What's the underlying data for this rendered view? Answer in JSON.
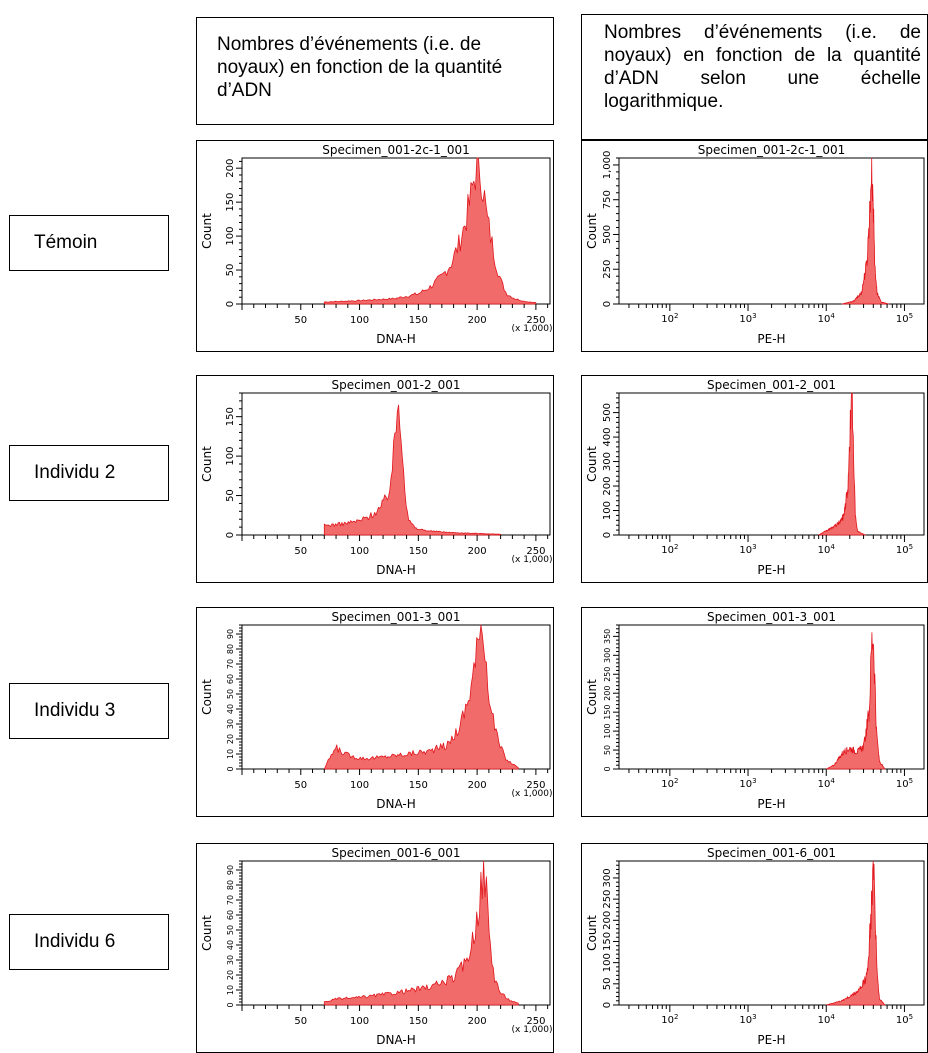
{
  "headers": {
    "linear": "Nombres d’événements (i.e. de noyaux) en fonction de la quantité d’ADN",
    "log": "Nombres d’événements (i.e. de noyaux) en fonction de la quantité d’ADN selon une échelle logarithmique."
  },
  "rows": [
    {
      "label": "Témoin"
    },
    {
      "label": "Individu 2"
    },
    {
      "label": "Individu 3"
    },
    {
      "label": "Individu 6"
    }
  ],
  "colors": {
    "fill": "#f26b6b",
    "stroke": "#e0161c"
  },
  "chart_data": [
    {
      "type": "area",
      "title": "Specimen_001-2c-1_001",
      "xlabel": "DNA-H",
      "ylabel": "Count",
      "xscale": "linear",
      "xlim": [
        0,
        262
      ],
      "ylim": [
        0,
        215
      ],
      "multiplier": "(x 1,000)",
      "xticks": [
        "50",
        "100",
        "150",
        "200",
        "250"
      ],
      "yticks": [
        "0",
        "50",
        "100",
        "150",
        "200"
      ],
      "x": [
        70,
        100,
        130,
        150,
        160,
        170,
        178,
        185,
        190,
        195,
        198,
        200,
        202,
        204,
        206,
        208,
        212,
        216,
        220,
        225,
        232,
        240,
        250
      ],
      "y": [
        3,
        5,
        8,
        15,
        25,
        40,
        60,
        90,
        120,
        160,
        190,
        205,
        200,
        185,
        160,
        130,
        95,
        60,
        35,
        15,
        8,
        4,
        2
      ]
    },
    {
      "type": "area",
      "title": "Specimen_001-2c-1_001",
      "xlabel": "PE-H",
      "ylabel": "Count",
      "xscale": "log",
      "xlim": [
        1.35,
        5.25
      ],
      "ylim": [
        0,
        1050
      ],
      "xticks": [
        "10^2",
        "10^3",
        "10^4",
        "10^5"
      ],
      "yticks": [
        "0",
        "250",
        "500",
        "750",
        "1,000"
      ],
      "x": [
        4.2,
        4.35,
        4.45,
        4.52,
        4.56,
        4.58,
        4.6,
        4.62,
        4.65,
        4.7,
        4.8
      ],
      "y": [
        0,
        20,
        80,
        300,
        700,
        1000,
        750,
        300,
        80,
        15,
        0
      ]
    },
    {
      "type": "area",
      "title": "Specimen_001-2_001",
      "xlabel": "DNA-H",
      "ylabel": "Count",
      "xscale": "linear",
      "xlim": [
        0,
        262
      ],
      "ylim": [
        0,
        180
      ],
      "multiplier": "(x 1,000)",
      "xticks": [
        "50",
        "100",
        "150",
        "200",
        "250"
      ],
      "yticks": [
        "0",
        "50",
        "100",
        "150"
      ],
      "x": [
        70,
        85,
        100,
        110,
        118,
        124,
        128,
        131,
        133,
        135,
        137,
        139,
        142,
        148,
        160,
        180,
        200,
        220
      ],
      "y": [
        12,
        14,
        18,
        25,
        35,
        50,
        85,
        140,
        172,
        150,
        100,
        50,
        18,
        8,
        5,
        3,
        2,
        1
      ]
    },
    {
      "type": "area",
      "title": "Specimen_001-2_001",
      "xlabel": "PE-H",
      "ylabel": "Count",
      "xscale": "log",
      "xlim": [
        1.35,
        5.25
      ],
      "ylim": [
        0,
        580
      ],
      "xticks": [
        "10^2",
        "10^3",
        "10^4",
        "10^5"
      ],
      "yticks": [
        "0",
        "100",
        "200",
        "300",
        "400",
        "500"
      ],
      "x": [
        3.9,
        4.05,
        4.15,
        4.22,
        4.28,
        4.31,
        4.33,
        4.35,
        4.37,
        4.4,
        4.5
      ],
      "y": [
        0,
        25,
        45,
        75,
        200,
        480,
        560,
        350,
        80,
        15,
        0
      ]
    },
    {
      "type": "area",
      "title": "Specimen_001-3_001",
      "xlabel": "DNA-H",
      "ylabel": "Count",
      "xscale": "linear",
      "xlim": [
        0,
        262
      ],
      "ylim": [
        0,
        96
      ],
      "multiplier": "(x 1,000)",
      "xticks": [
        "50",
        "100",
        "150",
        "200",
        "250"
      ],
      "yticks": [
        "0",
        "10",
        "20",
        "30",
        "40",
        "50",
        "60",
        "70",
        "80",
        "90"
      ],
      "x": [
        70,
        75,
        80,
        88,
        95,
        105,
        120,
        140,
        160,
        175,
        185,
        192,
        198,
        202,
        205,
        208,
        212,
        218,
        225,
        235
      ],
      "y": [
        0,
        8,
        14,
        10,
        8,
        7,
        8,
        10,
        12,
        16,
        28,
        45,
        70,
        88,
        94,
        70,
        40,
        18,
        6,
        1
      ]
    },
    {
      "type": "area",
      "title": "Specimen_001-3_001",
      "xlabel": "PE-H",
      "ylabel": "Count",
      "xscale": "log",
      "xlim": [
        1.35,
        5.25
      ],
      "ylim": [
        0,
        380
      ],
      "xticks": [
        "10^2",
        "10^3",
        "10^4",
        "10^5"
      ],
      "yticks": [
        "0",
        "50",
        "100",
        "150",
        "200",
        "250",
        "300",
        "350"
      ],
      "x": [
        4.0,
        4.1,
        4.2,
        4.3,
        4.4,
        4.48,
        4.55,
        4.58,
        4.6,
        4.62,
        4.64,
        4.68,
        4.75
      ],
      "y": [
        0,
        10,
        40,
        55,
        45,
        60,
        150,
        330,
        360,
        250,
        100,
        20,
        0
      ]
    },
    {
      "type": "area",
      "title": "Specimen_001-6_001",
      "xlabel": "DNA-H",
      "ylabel": "Count",
      "xscale": "linear",
      "xlim": [
        0,
        262
      ],
      "ylim": [
        0,
        96
      ],
      "multiplier": "(x 1,000)",
      "xticks": [
        "50",
        "100",
        "150",
        "200",
        "250"
      ],
      "yticks": [
        "0",
        "10",
        "20",
        "30",
        "40",
        "50",
        "60",
        "70",
        "80",
        "90"
      ],
      "x": [
        70,
        80,
        100,
        130,
        160,
        180,
        190,
        197,
        202,
        206,
        208,
        211,
        215,
        220,
        228,
        235
      ],
      "y": [
        2,
        4,
        5,
        8,
        12,
        18,
        28,
        45,
        70,
        92,
        75,
        40,
        18,
        8,
        3,
        1
      ]
    },
    {
      "type": "area",
      "title": "Specimen_001-6_001",
      "xlabel": "PE-H",
      "ylabel": "Count",
      "xscale": "log",
      "xlim": [
        1.35,
        5.25
      ],
      "ylim": [
        0,
        340
      ],
      "xticks": [
        "10^2",
        "10^3",
        "10^4",
        "10^5"
      ],
      "yticks": [
        "0",
        "50",
        "100",
        "150",
        "200",
        "250",
        "300"
      ],
      "x": [
        4.0,
        4.2,
        4.35,
        4.45,
        4.52,
        4.57,
        4.6,
        4.62,
        4.65,
        4.68,
        4.75
      ],
      "y": [
        0,
        10,
        25,
        40,
        70,
        200,
        320,
        260,
        80,
        15,
        0
      ]
    }
  ]
}
